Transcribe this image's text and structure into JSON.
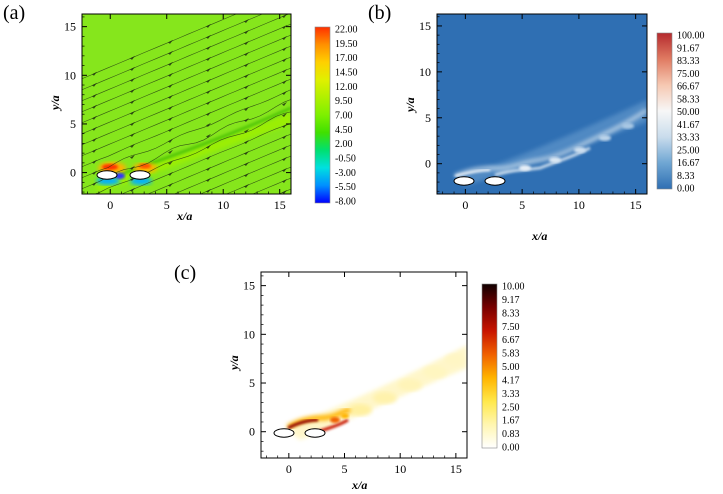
{
  "panels": [
    {
      "letter": "(a)",
      "xlabel": "x/a",
      "ylabel": "y/a",
      "x_ticks": [
        "0",
        "5",
        "10",
        "15"
      ],
      "y_ticks": [
        "0",
        "5",
        "10",
        "15"
      ],
      "colorbar_ticks": [
        "22.00",
        "19.50",
        "17.00",
        "14.50",
        "12.00",
        "9.50",
        "7.00",
        "4.50",
        "2.00",
        "-0.50",
        "-3.00",
        "-5.50",
        "-8.00"
      ],
      "colormap": [
        "#0000ff",
        "#0090ff",
        "#00e0e0",
        "#00e070",
        "#40e000",
        "#7ef000",
        "#b0f000",
        "#e0f000",
        "#ffd000",
        "#ff9000",
        "#ff3000"
      ],
      "background": "#86e61c"
    },
    {
      "letter": "(b)",
      "xlabel": "x/a",
      "ylabel": "y/a",
      "x_ticks": [
        "0",
        "5",
        "10",
        "15"
      ],
      "y_ticks": [
        "0",
        "5",
        "10",
        "15"
      ],
      "colorbar_ticks": [
        "100.00",
        "91.67",
        "83.33",
        "75.00",
        "66.67",
        "58.33",
        "50.00",
        "41.67",
        "33.33",
        "25.00",
        "16.67",
        "8.33",
        "0.00"
      ],
      "colormap": [
        "#2f6fb3",
        "#6fa6d3",
        "#c9dcec",
        "#f7f7f7",
        "#f6c8b2",
        "#e07b62",
        "#b52a2e"
      ],
      "background": "#2f6fb3"
    },
    {
      "letter": "(c)",
      "xlabel": "x/a",
      "ylabel": "y/a",
      "x_ticks": [
        "0",
        "5",
        "10",
        "15"
      ],
      "y_ticks": [
        "0",
        "5",
        "10",
        "15"
      ],
      "colorbar_ticks": [
        "10.00",
        "9.17",
        "8.33",
        "7.50",
        "6.67",
        "5.83",
        "5.00",
        "4.17",
        "3.33",
        "2.50",
        "1.67",
        "0.83",
        "0.00"
      ],
      "colormap": [
        "#ffffff",
        "#fff6b0",
        "#ffe84a",
        "#ffb400",
        "#f06000",
        "#c81400",
        "#780000",
        "#100000"
      ],
      "background": "#ffffff"
    }
  ]
}
